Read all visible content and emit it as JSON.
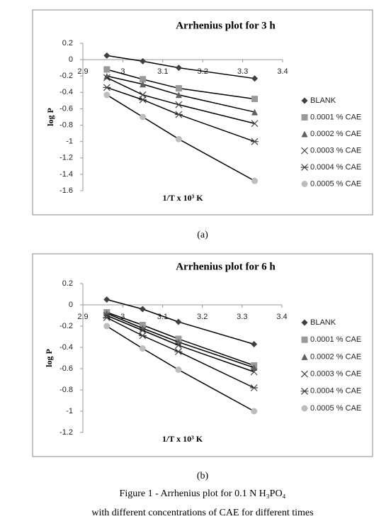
{
  "chart_data": [
    {
      "type": "line",
      "title": "Arrhenius  plot for 3 h",
      "x_label": "1/T x 10³ K",
      "y_label": "log P",
      "x": [
        2.96,
        3.05,
        3.14,
        3.33
      ],
      "xlim": [
        2.9,
        3.4
      ],
      "xticks": [
        2.9,
        3,
        3.1,
        3.2,
        3.3,
        3.4
      ],
      "ylim": [
        -1.6,
        0.2
      ],
      "yticks": [
        0.2,
        0,
        -0.2,
        -0.4,
        -0.6,
        -0.8,
        -1,
        -1.2,
        -1.4,
        -1.6
      ],
      "grid": false,
      "legend": "right",
      "series": [
        {
          "name": "BLANK",
          "color": "#404040",
          "marker": "diamond",
          "values": [
            0.05,
            -0.02,
            -0.1,
            -0.23
          ]
        },
        {
          "name": "0.0001 % CAE",
          "color": "#9a9a9a",
          "marker": "square",
          "values": [
            -0.12,
            -0.24,
            -0.35,
            -0.48
          ]
        },
        {
          "name": "0.0002 % CAE",
          "color": "#606060",
          "marker": "triangle",
          "values": [
            -0.2,
            -0.3,
            -0.43,
            -0.64
          ]
        },
        {
          "name": "0.0003 % CAE",
          "color": "#404040",
          "marker": "cross",
          "values": [
            -0.22,
            -0.43,
            -0.55,
            -0.78
          ]
        },
        {
          "name": "0.0004 % CAE",
          "color": "#404040",
          "marker": "star",
          "values": [
            -0.34,
            -0.49,
            -0.67,
            -1.0
          ]
        },
        {
          "name": "0.0005 % CAE",
          "color": "#bdbdbd",
          "marker": "circle",
          "values": [
            -0.43,
            -0.7,
            -0.97,
            -1.48
          ]
        }
      ]
    },
    {
      "type": "line",
      "title": "Arrhenius  plot for 6 h",
      "x_label": "1/T x 10³ K",
      "y_label": "log P",
      "x": [
        2.96,
        3.05,
        3.14,
        3.33
      ],
      "xlim": [
        2.9,
        3.4
      ],
      "xticks": [
        2.9,
        3,
        3.1,
        3.2,
        3.3,
        3.4
      ],
      "ylim": [
        -1.2,
        0.2
      ],
      "yticks": [
        0.2,
        0,
        -0.2,
        -0.4,
        -0.6,
        -0.8,
        -1,
        -1.2
      ],
      "grid": false,
      "legend": "right",
      "series": [
        {
          "name": "BLANK",
          "color": "#404040",
          "marker": "diamond",
          "values": [
            0.05,
            -0.04,
            -0.16,
            -0.37
          ]
        },
        {
          "name": "0.0001 % CAE",
          "color": "#9a9a9a",
          "marker": "square",
          "values": [
            -0.07,
            -0.19,
            -0.32,
            -0.57
          ]
        },
        {
          "name": "0.0002 % CAE",
          "color": "#606060",
          "marker": "triangle",
          "values": [
            -0.08,
            -0.22,
            -0.35,
            -0.59
          ]
        },
        {
          "name": "0.0003 % CAE",
          "color": "#404040",
          "marker": "cross",
          "values": [
            -0.1,
            -0.24,
            -0.38,
            -0.63
          ]
        },
        {
          "name": "0.0004 % CAE",
          "color": "#404040",
          "marker": "star",
          "values": [
            -0.12,
            -0.29,
            -0.44,
            -0.78
          ]
        },
        {
          "name": "0.0005 % CAE",
          "color": "#bdbdbd",
          "marker": "circle",
          "values": [
            -0.2,
            -0.41,
            -0.61,
            -1.0
          ]
        }
      ]
    }
  ],
  "panel_labels": [
    "(a)",
    "(b)"
  ],
  "caption": [
    "Figure 1 - Arrhenius plot for 0.1 N H₃PO₄",
    "with different concentrations of CAE for different times"
  ]
}
